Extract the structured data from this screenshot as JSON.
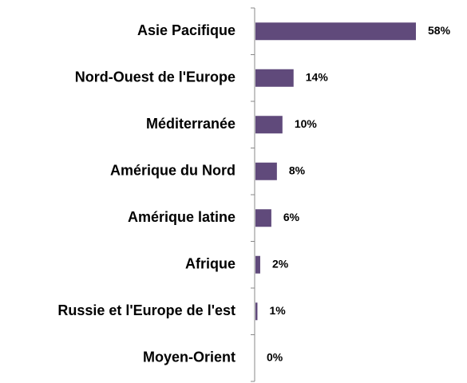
{
  "chart_data": {
    "type": "bar",
    "orientation": "horizontal",
    "categories": [
      "Asie Pacifique",
      "Nord-Ouest de l'Europe",
      "Méditerranée",
      "Amérique du Nord",
      "Amérique latine",
      "Afrique",
      "Russie et l'Europe de l'est",
      "Moyen-Orient"
    ],
    "values": [
      58,
      14,
      10,
      8,
      6,
      2,
      1,
      0
    ],
    "value_labels": [
      "58%",
      "14%",
      "10%",
      "8%",
      "6%",
      "2%",
      "1%",
      "0%"
    ],
    "color": "#604a7b"
  }
}
